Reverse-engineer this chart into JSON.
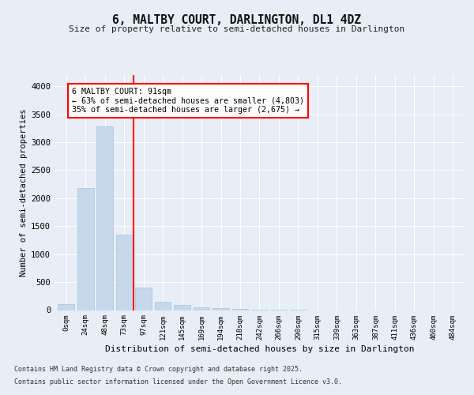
{
  "title": "6, MALTBY COURT, DARLINGTON, DL1 4DZ",
  "subtitle": "Size of property relative to semi-detached houses in Darlington",
  "xlabel": "Distribution of semi-detached houses by size in Darlington",
  "ylabel": "Number of semi-detached properties",
  "bar_labels": [
    "0sqm",
    "24sqm",
    "48sqm",
    "73sqm",
    "97sqm",
    "121sqm",
    "145sqm",
    "169sqm",
    "194sqm",
    "218sqm",
    "242sqm",
    "266sqm",
    "290sqm",
    "315sqm",
    "339sqm",
    "363sqm",
    "387sqm",
    "411sqm",
    "436sqm",
    "460sqm",
    "484sqm"
  ],
  "bar_values": [
    100,
    2180,
    3280,
    1350,
    400,
    150,
    95,
    55,
    35,
    20,
    10,
    5,
    2,
    0,
    0,
    0,
    0,
    0,
    0,
    0,
    0
  ],
  "bar_color": "#c5d8ec",
  "bar_edge_color": "#a8c4df",
  "vline_index": 3,
  "vline_color": "red",
  "annotation_text": "6 MALTBY COURT: 91sqm\n← 63% of semi-detached houses are smaller (4,803)\n35% of semi-detached houses are larger (2,675) →",
  "annotation_box_color": "white",
  "annotation_box_edge": "red",
  "ylim": [
    0,
    4200
  ],
  "yticks": [
    0,
    500,
    1000,
    1500,
    2000,
    2500,
    3000,
    3500,
    4000
  ],
  "background_color": "#e8eef6",
  "plot_background": "#e8eef6",
  "footer1": "Contains HM Land Registry data © Crown copyright and database right 2025.",
  "footer2": "Contains public sector information licensed under the Open Government Licence v3.0."
}
